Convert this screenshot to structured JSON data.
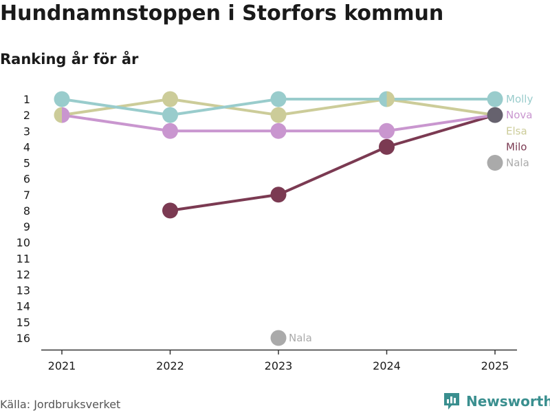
{
  "header": {
    "title": "Hundnamnstoppen i Storfors kommun",
    "subtitle": "Ranking år för år"
  },
  "footer": {
    "source": "Källa: Jordbruksverket",
    "brand": "Newsworthy",
    "brand_color": "#3a8f8f"
  },
  "chart_data": {
    "type": "line",
    "title": "Hundnamnstoppen i Storfors kommun",
    "subtitle": "Ranking år för år",
    "categories": [
      "2021",
      "2022",
      "2023",
      "2024",
      "2025"
    ],
    "y_ticks": [
      "1",
      "2",
      "3",
      "4",
      "5",
      "6",
      "7",
      "8",
      "9",
      "10",
      "11",
      "12",
      "13",
      "14",
      "15",
      "16"
    ],
    "ylim": [
      1,
      16
    ],
    "y_inverted": true,
    "grid": false,
    "series": [
      {
        "name": "Milo",
        "color": "#7b3a52",
        "values": [
          null,
          8,
          7,
          4,
          2
        ]
      },
      {
        "name": "Nova",
        "color": "#c996cf",
        "values": [
          2,
          3,
          3,
          3,
          2
        ]
      },
      {
        "name": "Elsa",
        "color": "#cccc99",
        "values": [
          2,
          1,
          2,
          1,
          2
        ]
      },
      {
        "name": "Molly",
        "color": "#99cccc",
        "values": [
          1,
          2,
          1,
          1,
          1
        ]
      },
      {
        "name": "Nala",
        "color": "#aaaaaa",
        "values": [
          null,
          null,
          16,
          null,
          5
        ]
      }
    ],
    "last_point_color": "#66626e",
    "point_labels": [
      {
        "series": "Nala",
        "category": "2023",
        "text": "Nala"
      }
    ],
    "end_labels": [
      "Molly",
      "Nova",
      "Elsa",
      "Milo",
      "Nala"
    ]
  }
}
